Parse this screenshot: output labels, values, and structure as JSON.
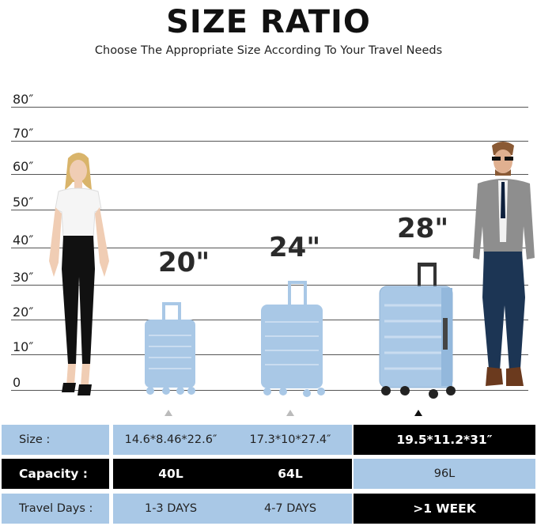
{
  "header": {
    "title": "SIZE RATIO",
    "subtitle": "Choose The Appropriate Size According To Your Travel Needs"
  },
  "scale": {
    "labels": [
      "80″",
      "70″",
      "60″",
      "50″",
      "40″",
      "30″",
      "20″",
      "10″",
      "0"
    ]
  },
  "suitcases": [
    {
      "label": "20\"",
      "color": "#a9c8e6"
    },
    {
      "label": "24\"",
      "color": "#a9c8e6"
    },
    {
      "label": "28\"",
      "color": "#a9c8e6"
    }
  ],
  "table": {
    "rows": [
      {
        "label": "Size :",
        "values": [
          "14.6*8.46*22.6″",
          "17.3*10*27.4″",
          "19.5*11.2*31″"
        ]
      },
      {
        "label": "Capacity :",
        "values": [
          "40L",
          "64L",
          "96L"
        ]
      },
      {
        "label": "Travel Days :",
        "values": [
          "1-3 DAYS",
          "4-7 DAYS",
          ">1 WEEK"
        ]
      }
    ]
  }
}
